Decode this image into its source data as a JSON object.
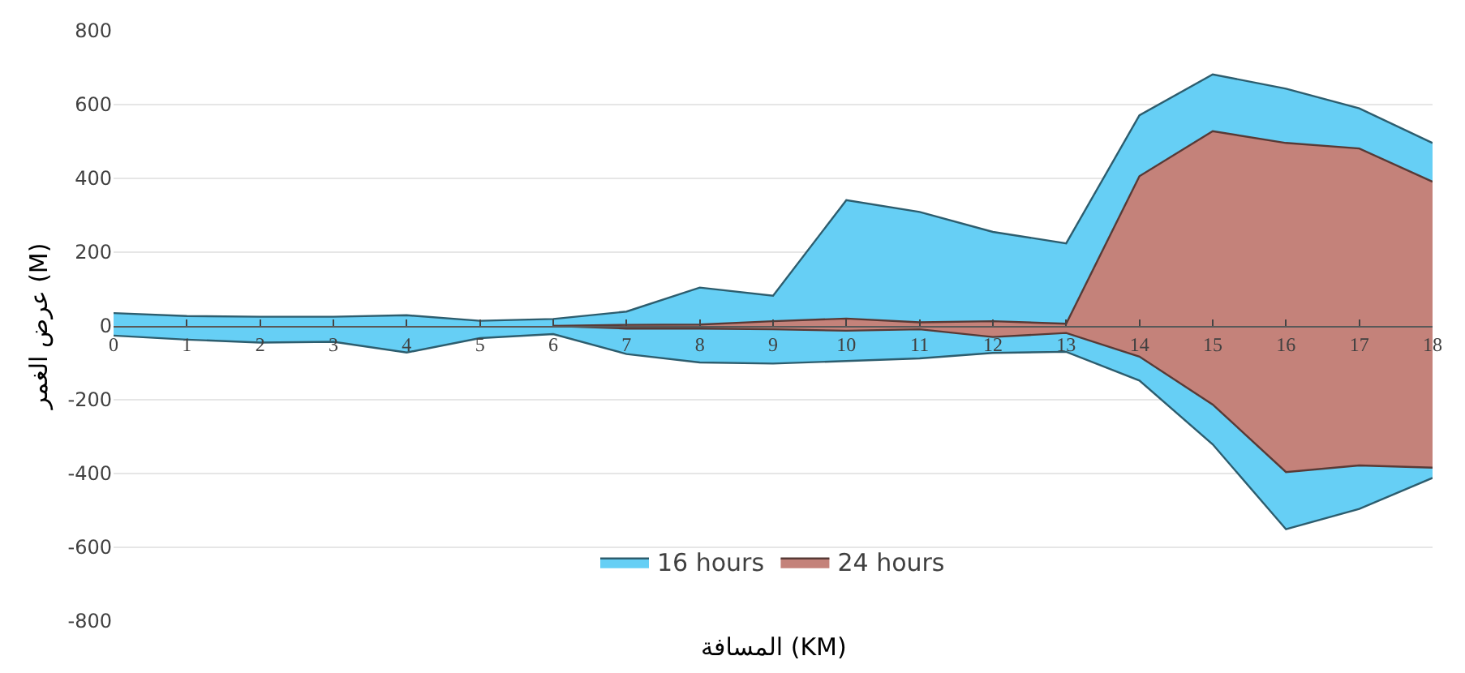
{
  "chart_data": {
    "type": "area",
    "xlabel": "المسافة (KM)",
    "ylabel": "عرض الغمر (M)",
    "x": [
      0,
      1,
      2,
      3,
      4,
      5,
      6,
      7,
      8,
      9,
      10,
      11,
      12,
      13,
      14,
      15,
      16,
      17,
      18
    ],
    "xlim": [
      0,
      18
    ],
    "xticks": [
      0,
      1,
      2,
      3,
      4,
      5,
      6,
      7,
      8,
      9,
      10,
      11,
      12,
      13,
      14,
      15,
      16,
      17,
      18
    ],
    "ylim": [
      -800,
      800
    ],
    "yticks": [
      -800,
      -600,
      -400,
      -200,
      0,
      200,
      400,
      600,
      800
    ],
    "grid": "y",
    "legend": "bottom",
    "series": [
      {
        "name": "16 hours",
        "color": "#66cff5",
        "values": [
          35,
          27,
          25,
          25,
          29,
          14,
          19,
          39,
          104,
          82,
          341,
          309,
          255,
          224,
          571,
          682,
          643,
          590,
          496
        ]
      },
      {
        "color": "#66cff5",
        "values": [
          -26,
          -37,
          -45,
          -43,
          -72,
          -33,
          -22,
          -76,
          -99,
          -102,
          -95,
          -88,
          -73,
          -70,
          -148,
          -321,
          -551,
          -496,
          -412
        ]
      },
      {
        "name": "24 hours",
        "color": "#c4827a",
        "values": [
          null,
          null,
          null,
          null,
          null,
          null,
          0,
          3,
          4,
          13,
          20,
          10,
          13,
          6,
          406,
          528,
          496,
          481,
          391
        ]
      },
      {
        "color": "#c4827a",
        "values": [
          null,
          null,
          null,
          null,
          null,
          null,
          0,
          -7,
          -7,
          -9,
          -13,
          -9,
          -30,
          -19,
          -83,
          -213,
          -396,
          -378,
          -384
        ]
      }
    ]
  }
}
